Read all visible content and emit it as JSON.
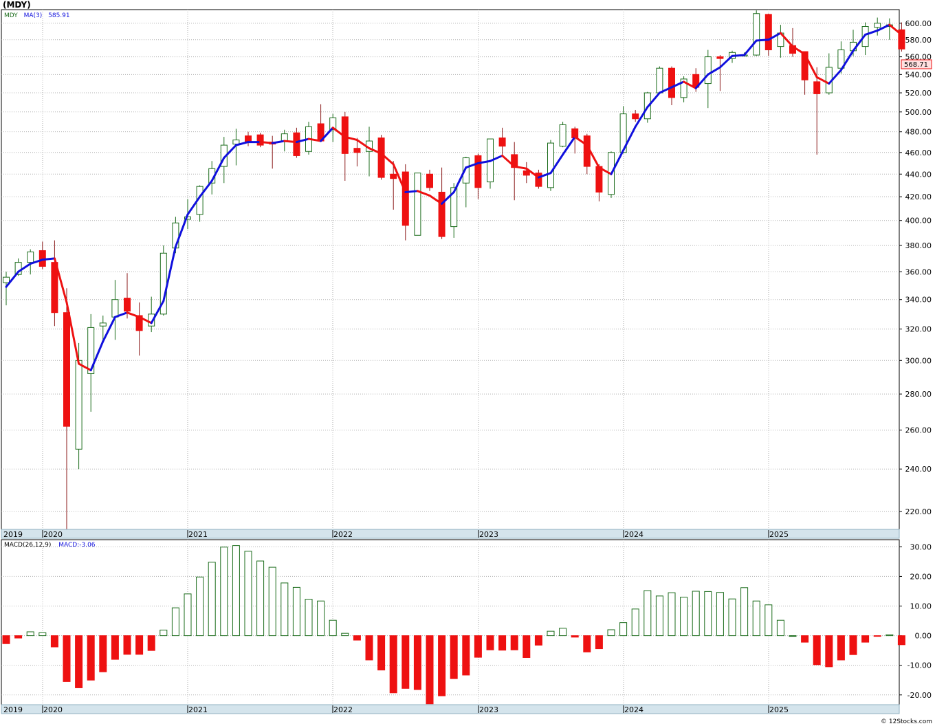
{
  "header": {
    "symbol_title": "(MDY)",
    "price_legend": {
      "symbol": "MDY",
      "ma_label": "MA(3)",
      "ma_value": "585.91"
    },
    "macd_legend": {
      "label": "MACD(26,12,9)",
      "value_label": "MACD:-3.06"
    },
    "last_price_tag": "568.71",
    "credit": "© 12Stocks.com"
  },
  "colors": {
    "up": "#1a6b1a",
    "down": "#ee1111",
    "ma_up": "#1010dd",
    "ma_down": "#ee1111",
    "grid": "#b0b0b0",
    "year_band": "#d4e4ec",
    "year_band_border": "#8fb0c0",
    "macd_legend": "#1a6b1a",
    "ma_legend": "#1010dd"
  },
  "chart_data": [
    {
      "type": "candlestick",
      "title": "(MDY)",
      "period": "monthly",
      "scale": "log",
      "grid": true,
      "y_ticks": [
        "600.00",
        "580.00",
        "560.00",
        "540.00",
        "520.00",
        "500.00",
        "480.00",
        "460.00",
        "440.00",
        "420.00",
        "400.00",
        "380.00",
        "360.00",
        "340.00",
        "320.00",
        "300.00",
        "280.00",
        "260.00",
        "240.00",
        "220.00"
      ],
      "x_year_labels": [
        "2019",
        "2020",
        "2021",
        "2022",
        "2023",
        "2024",
        "2025"
      ],
      "ylim": [
        212,
        617
      ],
      "candles": [
        {
          "d": "2019-11",
          "o": 352,
          "h": 360,
          "l": 336,
          "c": 356
        },
        {
          "d": "2019-12",
          "o": 358,
          "h": 370,
          "l": 357,
          "c": 367
        },
        {
          "d": "2020-01",
          "o": 367,
          "h": 377,
          "l": 358,
          "c": 375
        },
        {
          "d": "2020-02",
          "o": 376,
          "h": 383,
          "l": 362,
          "c": 364
        },
        {
          "d": "2020-03",
          "o": 367,
          "h": 384,
          "l": 322,
          "c": 331
        },
        {
          "d": "2020-04",
          "o": 331,
          "h": 348,
          "l": 212,
          "c": 262
        },
        {
          "d": "2020-05",
          "o": 250,
          "h": 311,
          "l": 240,
          "c": 300
        },
        {
          "d": "2020-06",
          "o": 292,
          "h": 330,
          "l": 270,
          "c": 321
        },
        {
          "d": "2020-07",
          "o": 322,
          "h": 329,
          "l": 312,
          "c": 324
        },
        {
          "d": "2020-08",
          "o": 328,
          "h": 354,
          "l": 313,
          "c": 340
        },
        {
          "d": "2020-09",
          "o": 341,
          "h": 359,
          "l": 327,
          "c": 332
        },
        {
          "d": "2020-10",
          "o": 329,
          "h": 338,
          "l": 303,
          "c": 319
        },
        {
          "d": "2020-11",
          "o": 322,
          "h": 342,
          "l": 318,
          "c": 330
        },
        {
          "d": "2020-12",
          "o": 330,
          "h": 380,
          "l": 329,
          "c": 374
        },
        {
          "d": "2021-01",
          "o": 378,
          "h": 403,
          "l": 374,
          "c": 398
        },
        {
          "d": "2021-02",
          "o": 401,
          "h": 418,
          "l": 393,
          "c": 403
        },
        {
          "d": "2021-03",
          "o": 405,
          "h": 430,
          "l": 399,
          "c": 429
        },
        {
          "d": "2021-04",
          "o": 432,
          "h": 452,
          "l": 422,
          "c": 445
        },
        {
          "d": "2021-05",
          "o": 447,
          "h": 475,
          "l": 432,
          "c": 467
        },
        {
          "d": "2021-06",
          "o": 468,
          "h": 483,
          "l": 448,
          "c": 472
        },
        {
          "d": "2021-07",
          "o": 476,
          "h": 480,
          "l": 466,
          "c": 470
        },
        {
          "d": "2021-08",
          "o": 477,
          "h": 479,
          "l": 465,
          "c": 467
        },
        {
          "d": "2021-09",
          "o": 470,
          "h": 476,
          "l": 445,
          "c": 468
        },
        {
          "d": "2021-10",
          "o": 471,
          "h": 482,
          "l": 461,
          "c": 478
        },
        {
          "d": "2021-11",
          "o": 479,
          "h": 484,
          "l": 455,
          "c": 457
        },
        {
          "d": "2021-12",
          "o": 461,
          "h": 490,
          "l": 458,
          "c": 485
        },
        {
          "d": "2022-01",
          "o": 488,
          "h": 508,
          "l": 472,
          "c": 471
        },
        {
          "d": "2022-02",
          "o": 482,
          "h": 498,
          "l": 470,
          "c": 494
        },
        {
          "d": "2022-03",
          "o": 495,
          "h": 500,
          "l": 434,
          "c": 459
        },
        {
          "d": "2022-04",
          "o": 464,
          "h": 474,
          "l": 447,
          "c": 460
        },
        {
          "d": "2022-05",
          "o": 461,
          "h": 485,
          "l": 438,
          "c": 471
        },
        {
          "d": "2022-06",
          "o": 474,
          "h": 477,
          "l": 435,
          "c": 437
        },
        {
          "d": "2022-07",
          "o": 440,
          "h": 452,
          "l": 409,
          "c": 436
        },
        {
          "d": "2022-08",
          "o": 442,
          "h": 449,
          "l": 384,
          "c": 396
        },
        {
          "d": "2022-09",
          "o": 388,
          "h": 441,
          "l": 391,
          "c": 441
        },
        {
          "d": "2022-10",
          "o": 440,
          "h": 444,
          "l": 425,
          "c": 428
        },
        {
          "d": "2022-11",
          "o": 424,
          "h": 446,
          "l": 385,
          "c": 387
        },
        {
          "d": "2022-12",
          "o": 395,
          "h": 432,
          "l": 386,
          "c": 428
        },
        {
          "d": "2023-01",
          "o": 432,
          "h": 456,
          "l": 411,
          "c": 455
        },
        {
          "d": "2023-02",
          "o": 457,
          "h": 459,
          "l": 418,
          "c": 428
        },
        {
          "d": "2023-03",
          "o": 433,
          "h": 472,
          "l": 427,
          "c": 473
        },
        {
          "d": "2023-04",
          "o": 474,
          "h": 484,
          "l": 458,
          "c": 466
        },
        {
          "d": "2023-05",
          "o": 458,
          "h": 470,
          "l": 417,
          "c": 446
        },
        {
          "d": "2023-06",
          "o": 443,
          "h": 451,
          "l": 432,
          "c": 439
        },
        {
          "d": "2023-07",
          "o": 441,
          "h": 444,
          "l": 427,
          "c": 429
        },
        {
          "d": "2023-08",
          "o": 428,
          "h": 472,
          "l": 425,
          "c": 469
        },
        {
          "d": "2023-09",
          "o": 466,
          "h": 490,
          "l": 465,
          "c": 487
        },
        {
          "d": "2023-10",
          "o": 483,
          "h": 485,
          "l": 459,
          "c": 474
        },
        {
          "d": "2023-11",
          "o": 476,
          "h": 478,
          "l": 440,
          "c": 447
        },
        {
          "d": "2023-12",
          "o": 447,
          "h": 449,
          "l": 416,
          "c": 424
        },
        {
          "d": "2024-01",
          "o": 422,
          "h": 461,
          "l": 419,
          "c": 460
        },
        {
          "d": "2024-02",
          "o": 460,
          "h": 506,
          "l": 459,
          "c": 498
        },
        {
          "d": "2024-03",
          "o": 498,
          "h": 502,
          "l": 490,
          "c": 493
        },
        {
          "d": "2024-04",
          "o": 493,
          "h": 521,
          "l": 489,
          "c": 520
        },
        {
          "d": "2024-05",
          "o": 520,
          "h": 549,
          "l": 519,
          "c": 547
        },
        {
          "d": "2024-06",
          "o": 547,
          "h": 549,
          "l": 507,
          "c": 515
        },
        {
          "d": "2024-07",
          "o": 515,
          "h": 538,
          "l": 510,
          "c": 535
        },
        {
          "d": "2024-08",
          "o": 540,
          "h": 547,
          "l": 521,
          "c": 526
        },
        {
          "d": "2024-09",
          "o": 530,
          "h": 568,
          "l": 504,
          "c": 560
        },
        {
          "d": "2024-10",
          "o": 560,
          "h": 562,
          "l": 522,
          "c": 558
        },
        {
          "d": "2024-11",
          "o": 558,
          "h": 567,
          "l": 553,
          "c": 565
        },
        {
          "d": "2024-12",
          "o": 562,
          "h": 565,
          "l": 562,
          "c": 562
        },
        {
          "d": "2025-01",
          "o": 562,
          "h": 616,
          "l": 561,
          "c": 612
        },
        {
          "d": "2025-02",
          "o": 611,
          "h": 612,
          "l": 561,
          "c": 568
        },
        {
          "d": "2025-03",
          "o": 572,
          "h": 598,
          "l": 559,
          "c": 588
        },
        {
          "d": "2025-04",
          "o": 573,
          "h": 594,
          "l": 560,
          "c": 564
        },
        {
          "d": "2025-05",
          "o": 566,
          "h": 566,
          "l": 518,
          "c": 534
        },
        {
          "d": "2025-06",
          "o": 532,
          "h": 548,
          "l": 458,
          "c": 519
        },
        {
          "d": "2025-07",
          "o": 520,
          "h": 564,
          "l": 518,
          "c": 548
        },
        {
          "d": "2025-08",
          "o": 547,
          "h": 578,
          "l": 541,
          "c": 568
        },
        {
          "d": "2025-09",
          "o": 567,
          "h": 592,
          "l": 561,
          "c": 577
        },
        {
          "d": "2025-10",
          "o": 572,
          "h": 601,
          "l": 562,
          "c": 596
        },
        {
          "d": "2025-11",
          "o": 595,
          "h": 607,
          "l": 585,
          "c": 600
        },
        {
          "d": "2025-12",
          "o": 596,
          "h": 606,
          "l": 580,
          "c": 598
        },
        {
          "d": "2026-01",
          "o": 592,
          "h": 601,
          "l": 566,
          "c": 569
        }
      ],
      "ma": [
        349,
        360,
        366,
        369,
        370,
        338,
        298,
        294,
        312,
        328,
        331,
        328,
        324,
        339,
        379,
        405,
        420,
        434,
        455,
        467,
        470,
        470,
        469,
        471,
        470,
        473,
        471,
        484,
        475,
        472,
        464,
        459,
        449,
        424,
        425,
        421,
        414,
        424,
        446,
        450,
        452,
        457,
        447,
        445,
        437,
        441,
        458,
        475,
        467,
        446,
        440,
        462,
        485,
        505,
        520,
        526,
        532,
        525,
        540,
        548,
        561,
        562,
        579,
        580,
        588,
        572,
        563,
        537,
        530,
        545,
        567,
        586,
        591,
        598,
        586
      ]
    },
    {
      "type": "bar",
      "title": "MACD(26,12,9)",
      "y_ticks": [
        "30.00",
        "20.00",
        "10.00",
        "0.00",
        "-10.00",
        "-20.00"
      ],
      "x_year_labels": [
        "2019",
        "2020",
        "2021",
        "2022",
        "2023",
        "2024",
        "2025"
      ],
      "ylim": [
        -23.3,
        32.4
      ],
      "values": [
        -2.7,
        -0.8,
        1.3,
        1.0,
        -3.8,
        -15.5,
        -17.6,
        -15.0,
        -12.2,
        -8.0,
        -6.3,
        -6.3,
        -5.0,
        1.9,
        9.4,
        14.1,
        19.8,
        24.8,
        29.9,
        30.4,
        28.5,
        25.2,
        23.1,
        17.8,
        16.3,
        12.3,
        11.7,
        5.2,
        0.8,
        -1.5,
        -8.2,
        -11.6,
        -19.3,
        -17.8,
        -18.2,
        -23.0,
        -20.3,
        -14.5,
        -13.3,
        -7.3,
        -4.8,
        -4.9,
        -4.8,
        -7.4,
        -3.2,
        1.5,
        2.5,
        -0.5,
        -5.5,
        -4.4,
        2.0,
        4.4,
        9.0,
        15.2,
        13.4,
        14.5,
        13.0,
        15.0,
        14.9,
        14.6,
        12.4,
        16.2,
        11.7,
        10.4,
        5.2,
        0,
        -2.2,
        -9.8,
        -10.5,
        -8.2,
        -6.4,
        -2.2,
        -0.2,
        0.3,
        -3.06
      ]
    }
  ]
}
